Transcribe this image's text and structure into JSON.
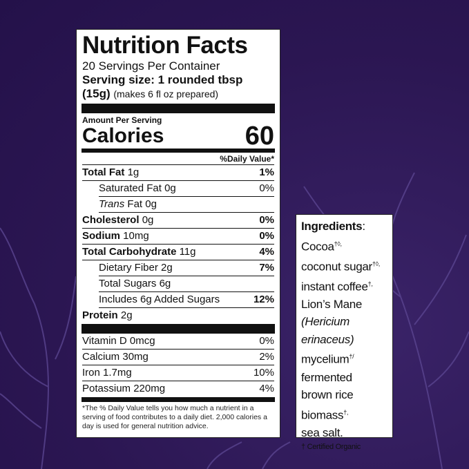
{
  "colors": {
    "background": "#2b1652",
    "branches": "#5a4590"
  },
  "label": {
    "title": "Nutrition Facts",
    "servings": "20 Servings Per Container",
    "serving_size": "Serving size: 1 rounded tbsp",
    "serving_grams": "(15g)",
    "serving_note": "(makes 6 fl oz prepared)",
    "amount_per_serving": "Amount Per Serving",
    "calories_label": "Calories",
    "calories_value": "60",
    "daily_value_header": "%Daily Value*",
    "rows": [
      {
        "name": "Total Fat",
        "amount": "1g",
        "dv": "1%",
        "bold": true
      },
      {
        "name": "Saturated Fat",
        "amount": "0g",
        "dv": "0%",
        "indent": true
      },
      {
        "name": "Trans",
        "suffix": "Fat 0g",
        "dv": "",
        "indent": true,
        "italic": true
      },
      {
        "name": "Cholesterol",
        "amount": "0g",
        "dv": "0%",
        "bold": true
      },
      {
        "name": "Sodium",
        "amount": "10mg",
        "dv": "0%",
        "bold": true
      },
      {
        "name": "Total Carbohydrate",
        "amount": "11g",
        "dv": "4%",
        "bold": true
      },
      {
        "name": "Dietary Fiber",
        "amount": "2g",
        "dv": "7%",
        "indent": true
      },
      {
        "name": "Total Sugars",
        "amount": "6g",
        "dv": "",
        "indent": true
      },
      {
        "name": "Includes 6g Added Sugars",
        "amount": "",
        "dv": "12%",
        "indent": true
      },
      {
        "name": "Protein",
        "amount": "2g",
        "dv": "",
        "bold": true
      }
    ],
    "vitamins": [
      {
        "name": "Vitamin D",
        "amount": "0mcg",
        "dv": "0%"
      },
      {
        "name": "Calcium",
        "amount": "30mg",
        "dv": "2%"
      },
      {
        "name": "Iron",
        "amount": "1.7mg",
        "dv": "10%"
      },
      {
        "name": "Potassium",
        "amount": "220mg",
        "dv": "4%"
      }
    ],
    "footnote": "*The % Daily Value tells you how much a nutrient in a serving of food contributes to a daily diet. 2,000 calories a day is used for general nutrition advice."
  },
  "ingredients": {
    "heading": "Ingredients",
    "lines": [
      "Cocoa",
      "coconut sugar",
      "instant coffee",
      "Lion’s Mane",
      "(Hericium",
      "erinaceus)",
      "mycelium",
      "fermented",
      "brown rice",
      "biomass",
      "sea salt."
    ],
    "marks": [
      "†◊,",
      "†◊,",
      "†,",
      "",
      "",
      "",
      "†/",
      "",
      "",
      "†,",
      ""
    ],
    "certified": "† Certified Organic"
  }
}
